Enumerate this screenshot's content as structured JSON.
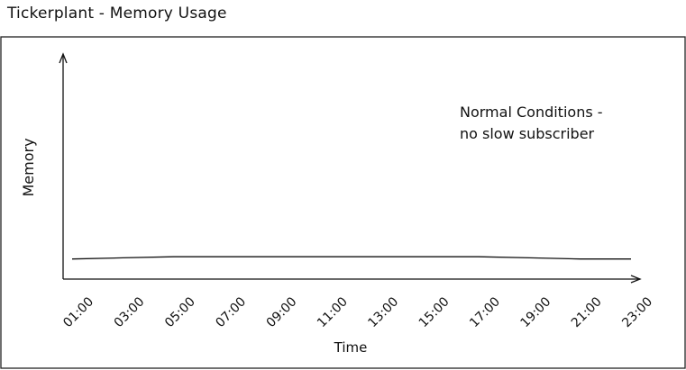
{
  "page": {
    "title": "Tickerplant  - Memory Usage"
  },
  "chart_data": {
    "type": "line",
    "title": "Tickerplant  - Memory Usage",
    "xlabel": "Time",
    "ylabel": "Memory",
    "x": [
      "01:00",
      "03:00",
      "05:00",
      "07:00",
      "09:00",
      "11:00",
      "13:00",
      "15:00",
      "17:00",
      "19:00",
      "21:00",
      "23:00"
    ],
    "series": [
      {
        "values": [
          0.09,
          0.095,
          0.1,
          0.1,
          0.1,
          0.1,
          0.1,
          0.1,
          0.1,
          0.095,
          0.09,
          0.09
        ]
      }
    ],
    "ylim": [
      0,
      1
    ],
    "grid": false,
    "annotations": [
      "Normal Conditions -",
      "no slow subscriber"
    ],
    "colors": {
      "line": "#111111",
      "frame": "#222222"
    }
  }
}
